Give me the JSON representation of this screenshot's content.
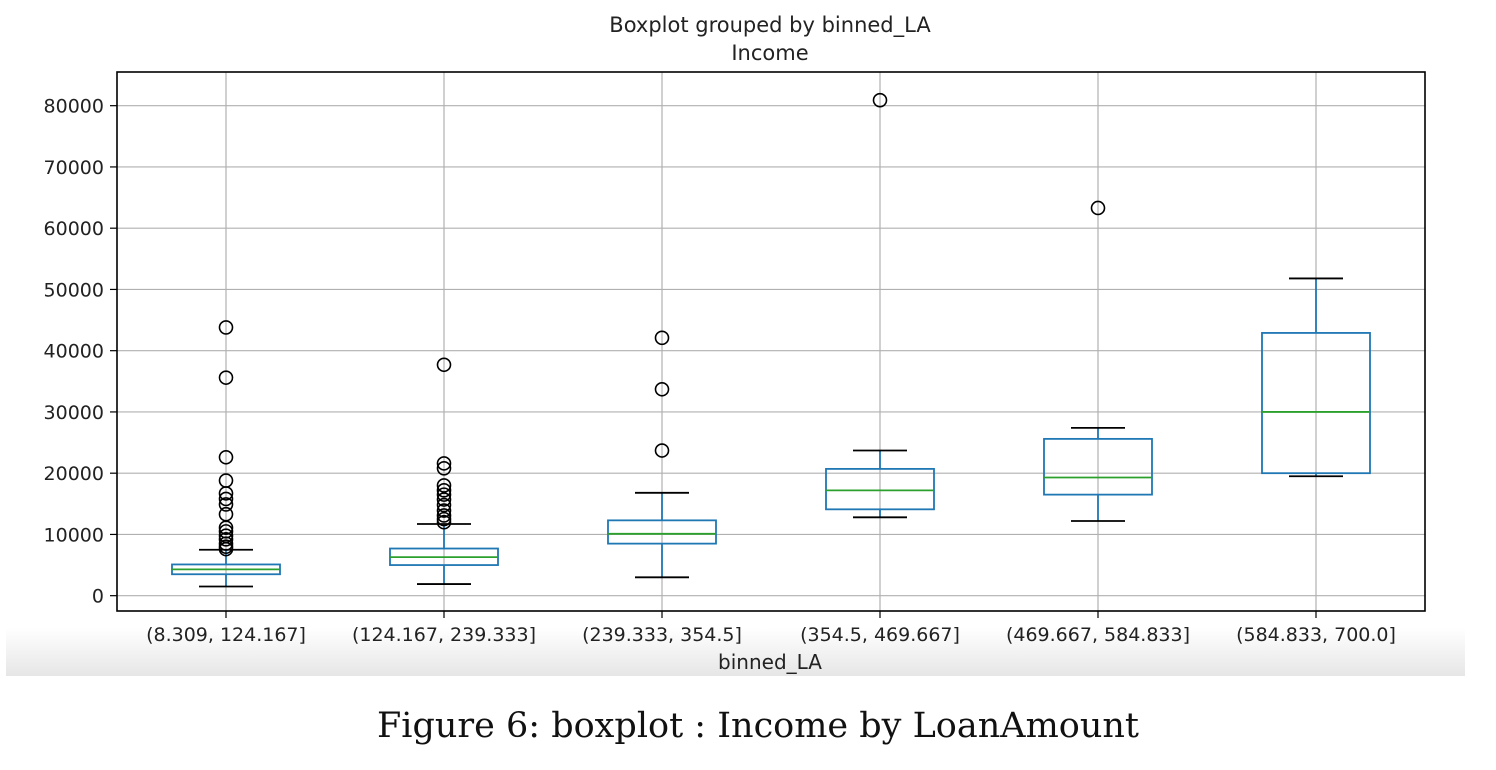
{
  "chart_data": {
    "type": "boxplot",
    "title": "Boxplot grouped by binned_LA",
    "subtitle": "Income",
    "xlabel": "binned_LA",
    "ylabel": "",
    "ylim": [
      -2500,
      85500
    ],
    "yticks": [
      0,
      10000,
      20000,
      30000,
      40000,
      50000,
      60000,
      70000,
      80000
    ],
    "grid": true,
    "colors": {
      "box": "#1f77b4",
      "median": "#2ca02c",
      "whisker": "#1f77b4",
      "flier": "#000000",
      "grid": "#b0b0b0"
    },
    "categories": [
      "(8.309, 124.167]",
      "(124.167, 239.333]",
      "(239.333, 354.5]",
      "(354.5, 469.667]",
      "(469.667, 584.833]",
      "(584.833, 700.0]"
    ],
    "boxes": [
      {
        "whislo": 1500,
        "q1": 3500,
        "med": 4300,
        "q3": 5100,
        "whishi": 7500,
        "fliers": [
          43800,
          35600,
          22600,
          18800,
          16700,
          15800,
          14900,
          13300,
          11100,
          10500,
          9800,
          9200,
          8500,
          8000,
          7600
        ]
      },
      {
        "whislo": 1900,
        "q1": 5000,
        "med": 6300,
        "q3": 7700,
        "whishi": 11700,
        "fliers": [
          37700,
          21600,
          20800,
          18000,
          17200,
          16500,
          15700,
          14800,
          13900,
          13100,
          12500,
          12000
        ]
      },
      {
        "whislo": 3000,
        "q1": 8500,
        "med": 10100,
        "q3": 12300,
        "whishi": 16800,
        "fliers": [
          42100,
          33700,
          23700
        ]
      },
      {
        "whislo": 12800,
        "q1": 14100,
        "med": 17200,
        "q3": 20700,
        "whishi": 23700,
        "fliers": [
          80900
        ]
      },
      {
        "whislo": 12200,
        "q1": 16500,
        "med": 19300,
        "q3": 25600,
        "whishi": 27400,
        "fliers": [
          63300
        ]
      },
      {
        "whislo": 19500,
        "q1": 20000,
        "med": 30000,
        "q3": 42900,
        "whishi": 51800,
        "fliers": []
      }
    ]
  },
  "caption": {
    "label": "Figure 6:",
    "text": "boxplot : Income by LoanAmount"
  }
}
